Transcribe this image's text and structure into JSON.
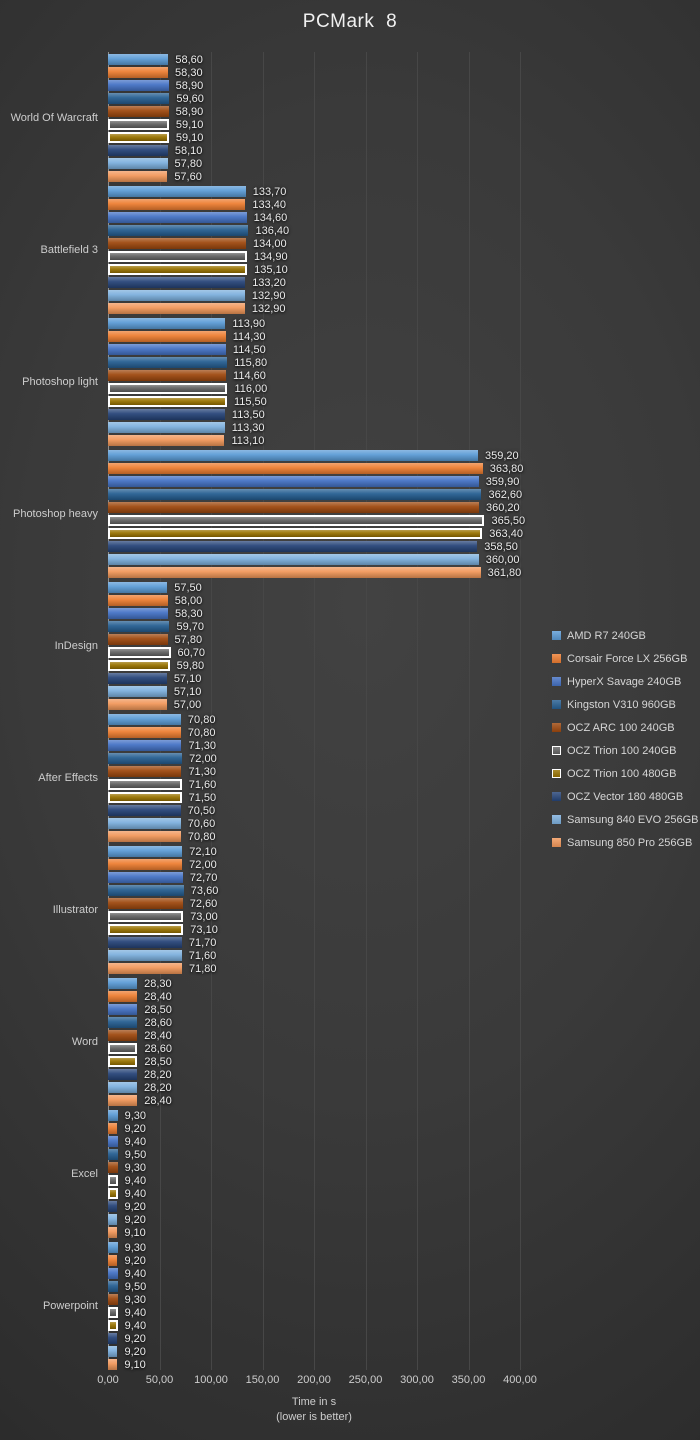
{
  "chart_data": {
    "type": "bar",
    "orientation": "horizontal",
    "title": "PCMark 8",
    "xlabel": "Time in s",
    "xlabel_note": "(lower is better)",
    "xlim": [
      0,
      400
    ],
    "xticks": [
      0,
      50,
      100,
      150,
      200,
      250,
      300,
      350,
      400
    ],
    "tick_labels": [
      "0,00",
      "50,00",
      "100,00",
      "150,00",
      "200,00",
      "250,00",
      "300,00",
      "350,00",
      "400,00"
    ],
    "grid": true,
    "legend_position": "right",
    "value_label_format": "comma-decimal-2",
    "categories": [
      "World Of Warcraft",
      "Battlefield 3",
      "Photoshop light",
      "Photoshop heavy",
      "InDesign",
      "After Effects",
      "Illustrator",
      "Word",
      "Excel",
      "Powerpoint"
    ],
    "series": [
      {
        "name": "AMD R7 240GB",
        "color": "#5B9BD5",
        "white_border": false,
        "values": [
          58.6,
          133.7,
          113.9,
          359.2,
          57.5,
          70.8,
          72.1,
          28.3,
          9.3,
          9.3
        ]
      },
      {
        "name": "Corsair Force LX 256GB",
        "color": "#ED7D31",
        "white_border": false,
        "values": [
          58.3,
          133.4,
          114.3,
          363.8,
          58.0,
          70.8,
          72.0,
          28.4,
          9.2,
          9.2
        ]
      },
      {
        "name": "HyperX Savage 240GB",
        "color": "#4472C4",
        "white_border": false,
        "values": [
          58.9,
          134.6,
          114.5,
          359.9,
          58.3,
          71.3,
          72.7,
          28.5,
          9.4,
          9.4
        ]
      },
      {
        "name": "Kingston V310 960GB",
        "color": "#255E91",
        "white_border": false,
        "values": [
          59.6,
          136.4,
          115.8,
          362.6,
          59.7,
          72.0,
          73.6,
          28.6,
          9.5,
          9.5
        ]
      },
      {
        "name": "OCZ ARC 100 240GB",
        "color": "#9E480E",
        "white_border": false,
        "values": [
          58.9,
          134.0,
          114.6,
          360.2,
          57.8,
          71.3,
          72.6,
          28.4,
          9.3,
          9.3
        ]
      },
      {
        "name": "OCZ Trion 100 240GB",
        "color": "#636363",
        "white_border": true,
        "values": [
          59.1,
          134.9,
          116.0,
          365.5,
          60.7,
          71.6,
          73.0,
          28.6,
          9.4,
          9.4
        ]
      },
      {
        "name": "OCZ Trion 100 480GB",
        "color": "#997300",
        "white_border": true,
        "values": [
          59.1,
          135.1,
          115.5,
          363.4,
          59.8,
          71.5,
          73.1,
          28.5,
          9.4,
          9.4
        ]
      },
      {
        "name": "OCZ Vector 180 480GB",
        "color": "#264478",
        "white_border": false,
        "values": [
          58.1,
          133.2,
          113.5,
          358.5,
          57.1,
          70.5,
          71.7,
          28.2,
          9.2,
          9.2
        ]
      },
      {
        "name": "Samsung 840 EVO 256GB",
        "color": "#7CAFDD",
        "white_border": false,
        "values": [
          57.8,
          132.9,
          113.3,
          360.0,
          57.1,
          70.6,
          71.6,
          28.2,
          9.2,
          9.2
        ]
      },
      {
        "name": "Samsung 850 Pro 256GB",
        "color": "#F1975A",
        "white_border": false,
        "values": [
          57.6,
          132.9,
          113.1,
          361.8,
          57.0,
          70.8,
          71.8,
          28.4,
          9.1,
          9.1
        ]
      }
    ]
  },
  "style": {
    "background_center": "#424242",
    "background_edge": "#222222",
    "gridline_color": "#474747",
    "axis_line_color": "#8F8F8F",
    "text_color": "#CDCDCD",
    "value_label_color": "#ECECEC",
    "title_color": "#F0F0F0",
    "series_border_color": "#FFFFFF"
  }
}
